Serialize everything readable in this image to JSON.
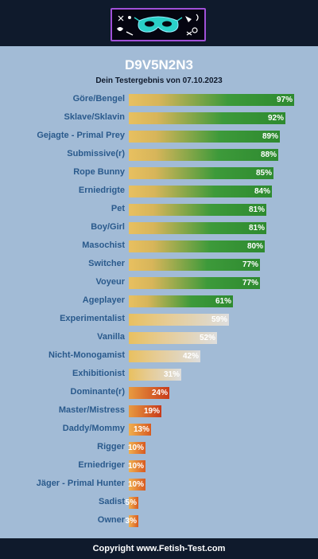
{
  "header": {
    "logo_icon": "mask-logo-icon"
  },
  "chart_data": {
    "type": "bar",
    "orientation": "horizontal",
    "title": "D9V5N2N3",
    "subtitle": "Dein Testergebnis von 07.10.2023",
    "categories": [
      "Göre/Bengel",
      "Sklave/Sklavin",
      "Gejagte - Primal Prey",
      "Submissive(r)",
      "Rope Bunny",
      "Erniedrigte",
      "Pet",
      "Boy/Girl",
      "Masochist",
      "Switcher",
      "Voyeur",
      "Ageplayer",
      "Experimentalist",
      "Vanilla",
      "Nicht-Monogamist",
      "Exhibitionist",
      "Dominante(r)",
      "Master/Mistress",
      "Daddy/Mommy",
      "Rigger",
      "Erniedriger",
      "Jäger - Primal Hunter",
      "Sadist",
      "Owner"
    ],
    "values": [
      97,
      92,
      89,
      88,
      85,
      84,
      81,
      81,
      80,
      77,
      77,
      61,
      59,
      52,
      42,
      31,
      24,
      19,
      13,
      10,
      10,
      10,
      5,
      3
    ],
    "value_labels": [
      "97%",
      "92%",
      "89%",
      "88%",
      "85%",
      "84%",
      "81%",
      "81%",
      "80%",
      "77%",
      "77%",
      "61%",
      "59%",
      "52%",
      "42%",
      "31%",
      "24%",
      "19%",
      "13%",
      "10%",
      "10%",
      "10%",
      "5%",
      "3%"
    ],
    "xlim": [
      0,
      100
    ],
    "grid": false
  },
  "footer": {
    "copyright": "Copyright www.Fetish-Test.com"
  }
}
